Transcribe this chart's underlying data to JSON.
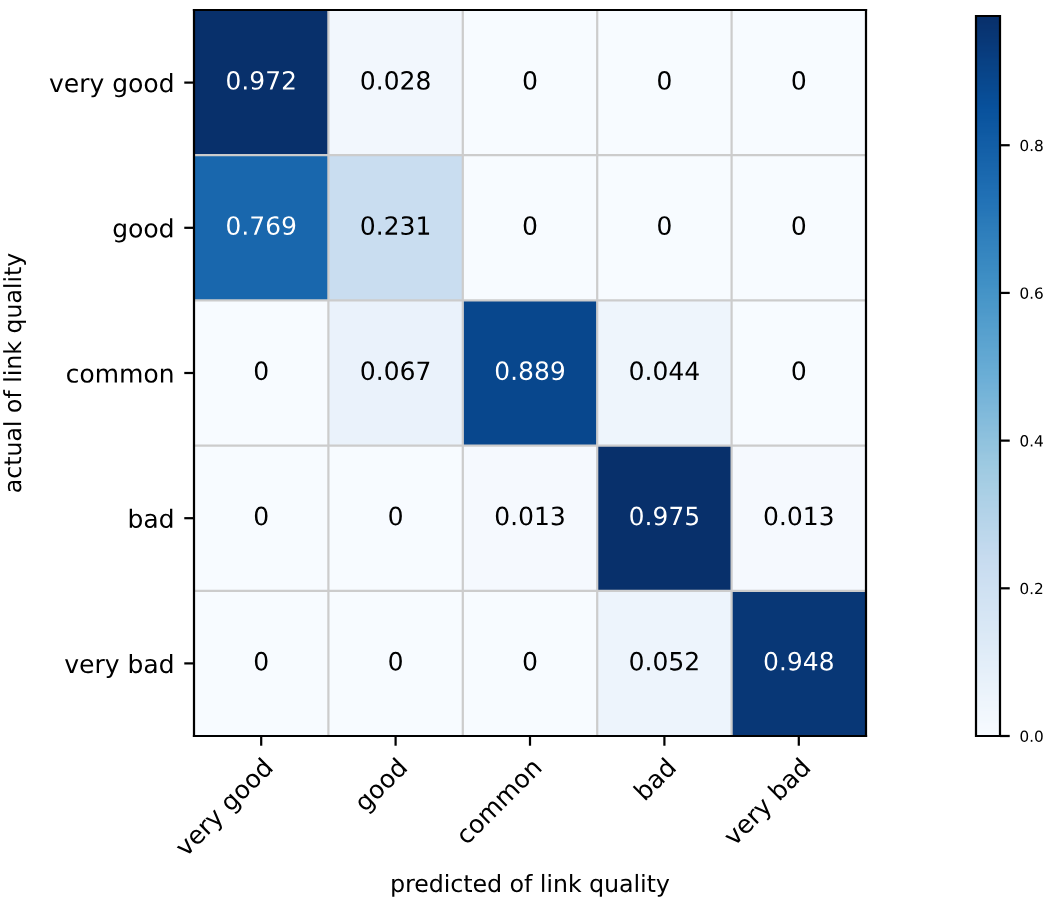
{
  "chart_data": {
    "type": "heatmap",
    "xlabel": "predicted of link quality",
    "ylabel": "actual of link quality",
    "categories": [
      "very good",
      "good",
      "common",
      "bad",
      "very bad"
    ],
    "y_categories": [
      "very good",
      "good",
      "common",
      "bad",
      "very bad"
    ],
    "cells": [
      [
        0.972,
        0.028,
        0,
        0,
        0
      ],
      [
        0.769,
        0.231,
        0,
        0,
        0
      ],
      [
        0,
        0.067,
        0.889,
        0.044,
        0
      ],
      [
        0,
        0,
        0.013,
        0.975,
        0.013
      ],
      [
        0,
        0,
        0,
        0.052,
        0.948
      ]
    ],
    "data_labels": true,
    "grid": true,
    "clim": [
      0,
      0.975
    ],
    "cticks": [
      {
        "value": 0,
        "label": "0.0"
      },
      {
        "value": 0.2,
        "label": "0.2"
      },
      {
        "value": 0.4,
        "label": "0.4"
      },
      {
        "value": 0.6,
        "label": "0.6"
      },
      {
        "value": 0.8,
        "label": "0.8"
      }
    ]
  }
}
